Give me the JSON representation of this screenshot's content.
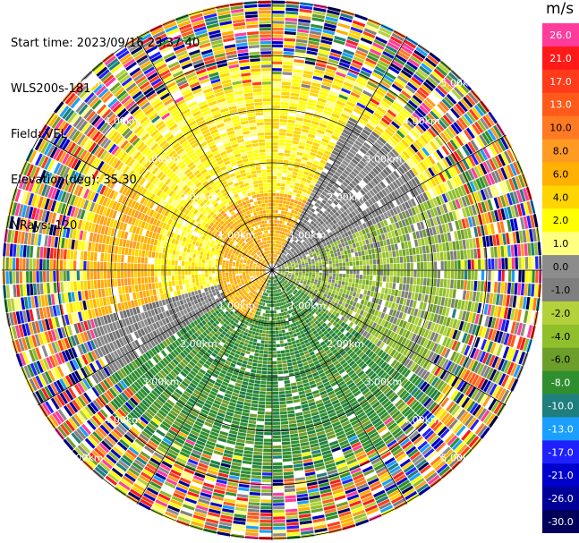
{
  "header": {
    "start_time": "Start time: 2023/09/16 23:37:40",
    "station": "WLS200s-181",
    "field": "Field: VEL",
    "elevation": "Elevation(deg): 35.30",
    "nrays": "NRays: 120"
  },
  "colorbar": {
    "unit": "m/s",
    "labels": [
      "26.0",
      "21.0",
      "17.0",
      "13.0",
      "10.0",
      "8.0",
      "6.0",
      "4.0",
      "2.0",
      "1.0",
      "0.0",
      "-1.0",
      "-2.0",
      "-4.0",
      "-6.0",
      "-8.0",
      "-10.0",
      "-13.0",
      "-17.0",
      "-21.0",
      "-26.0",
      "-30.0"
    ],
    "colors": [
      "#ff3c9c",
      "#ff1a1a",
      "#ff3b1a",
      "#ff5a1a",
      "#ff7a22",
      "#ff9a22",
      "#ffb000",
      "#ffd400",
      "#ffff00",
      "#ffff80",
      "#8c8c8c",
      "#7f7f7f",
      "#b3d13a",
      "#8fbf2a",
      "#6e9e2a",
      "#2f8f2f",
      "#1f7f7f",
      "#1a9fff",
      "#2020ff",
      "#0000cc",
      "#000099",
      "#00005a"
    ]
  },
  "ppi": {
    "range_rings": [
      "1.00km",
      "2.00km",
      "3.00km",
      "4.00km",
      "5.00km"
    ],
    "nrays": 120
  }
}
